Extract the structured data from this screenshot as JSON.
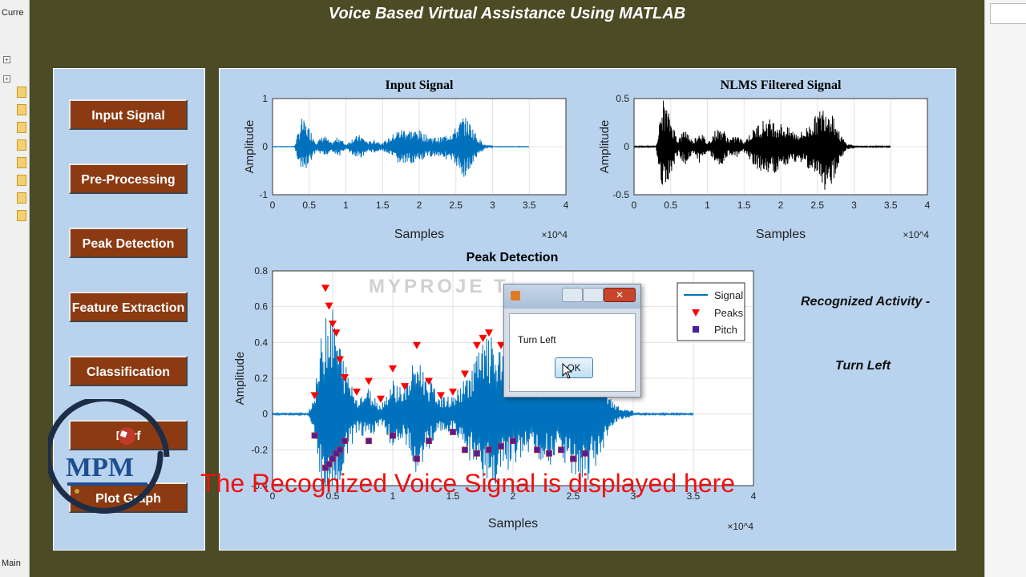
{
  "matlab_ide": {
    "left_labels": [
      "Curre",
      "Main"
    ]
  },
  "app": {
    "title": "Voice Based Virtual Assistance Using MATLAB"
  },
  "buttons": [
    {
      "label": "Input Signal"
    },
    {
      "label": "Pre-Processing"
    },
    {
      "label": "Peak Detection"
    },
    {
      "label": "Feature Extraction"
    },
    {
      "label": "Classification"
    },
    {
      "label": "Perf"
    },
    {
      "label": "Plot Graph"
    }
  ],
  "recognized": {
    "heading": "Recognized Activity -",
    "value": "Turn Left"
  },
  "dialog": {
    "message": "Turn Left",
    "ok_label": "OK"
  },
  "overlay": {
    "caption": "The Recognized Voice Signal is displayed here",
    "watermark": "MYPROJE      T",
    "logo_text": "MPM"
  },
  "colors": {
    "figure_bg": "#4b4b25",
    "panel_bg": "#b9d3ee",
    "button_bg": "#8b3a12",
    "signal": "#0072bd",
    "peaks": "#ff0000",
    "pitch": "#4a1f9e",
    "caption": "#ee1111"
  },
  "chart_data": [
    {
      "type": "line",
      "title": "Input Signal",
      "xlabel": "Samples",
      "ylabel": "Amplitude",
      "xlim": [
        0,
        40000
      ],
      "ylim": [
        -1,
        1
      ],
      "x_ticks": [
        "0",
        "0.5",
        "1",
        "1.5",
        "2",
        "2.5",
        "3",
        "3.5",
        "4"
      ],
      "y_ticks": [
        "-1",
        "0",
        "1"
      ],
      "x_exponent": "×10^4",
      "grid": true,
      "series": [
        {
          "color": "#0072bd",
          "envelope": [
            [
              3000,
              0.02
            ],
            [
              4000,
              0.6
            ],
            [
              5000,
              0.4
            ],
            [
              6000,
              0.1
            ],
            [
              7000,
              0.25
            ],
            [
              8000,
              0.08
            ],
            [
              9000,
              0.22
            ],
            [
              10000,
              0.05
            ],
            [
              11000,
              0.2
            ],
            [
              12000,
              0.25
            ],
            [
              13000,
              0.1
            ],
            [
              14000,
              0.15
            ],
            [
              15000,
              0.08
            ],
            [
              16000,
              0.2
            ],
            [
              17000,
              0.35
            ],
            [
              18000,
              0.4
            ],
            [
              19000,
              0.35
            ],
            [
              20000,
              0.35
            ],
            [
              21000,
              0.25
            ],
            [
              22000,
              0.2
            ],
            [
              23000,
              0.2
            ],
            [
              24000,
              0.3
            ],
            [
              25000,
              0.4
            ],
            [
              26000,
              0.65
            ],
            [
              27000,
              0.5
            ],
            [
              28000,
              0.2
            ],
            [
              29000,
              0.04
            ],
            [
              30000,
              0.02
            ]
          ]
        }
      ]
    },
    {
      "type": "line",
      "title": "NLMS Filtered Signal",
      "xlabel": "Samples",
      "ylabel": "Amplitude",
      "xlim": [
        0,
        40000
      ],
      "ylim": [
        -0.5,
        0.5
      ],
      "x_ticks": [
        "0",
        "0.5",
        "1",
        "1.5",
        "2",
        "2.5",
        "3",
        "3.5",
        "4"
      ],
      "y_ticks": [
        "-0.5",
        "0",
        "0.5"
      ],
      "x_exponent": "×10^4",
      "grid": true,
      "series": [
        {
          "color": "#000000",
          "envelope": [
            [
              3000,
              0.02
            ],
            [
              4000,
              0.5
            ],
            [
              5000,
              0.3
            ],
            [
              6000,
              0.08
            ],
            [
              7000,
              0.2
            ],
            [
              8000,
              0.06
            ],
            [
              9000,
              0.18
            ],
            [
              10000,
              0.04
            ],
            [
              11000,
              0.17
            ],
            [
              12000,
              0.2
            ],
            [
              13000,
              0.08
            ],
            [
              14000,
              0.12
            ],
            [
              15000,
              0.06
            ],
            [
              16000,
              0.16
            ],
            [
              17000,
              0.25
            ],
            [
              18000,
              0.3
            ],
            [
              19000,
              0.28
            ],
            [
              20000,
              0.25
            ],
            [
              21000,
              0.2
            ],
            [
              22000,
              0.16
            ],
            [
              23000,
              0.16
            ],
            [
              24000,
              0.25
            ],
            [
              25000,
              0.35
            ],
            [
              26000,
              0.45
            ],
            [
              27000,
              0.4
            ],
            [
              28000,
              0.15
            ],
            [
              29000,
              0.03
            ],
            [
              30000,
              0.02
            ]
          ]
        }
      ]
    },
    {
      "type": "line",
      "title": "Peak Detection",
      "xlabel": "Samples",
      "ylabel": "Amplitude",
      "xlim": [
        0,
        40000
      ],
      "ylim": [
        -0.4,
        0.8
      ],
      "x_ticks": [
        "0",
        "0.5",
        "1",
        "1.5",
        "2",
        "2.5",
        "3",
        "3.5",
        "4"
      ],
      "y_ticks": [
        "-0.4",
        "-0.2",
        "0",
        "0.2",
        "0.4",
        "0.6",
        "0.8"
      ],
      "x_exponent": "×10^4",
      "grid": true,
      "legend": {
        "position": "top-right",
        "entries": [
          "Signal",
          "Peaks",
          "Pitch"
        ]
      },
      "series": [
        {
          "name": "Signal",
          "color": "#0072bd",
          "envelope": [
            [
              3000,
              0.02
            ],
            [
              3500,
              0.12
            ],
            [
              4500,
              0.7
            ],
            [
              5000,
              0.6
            ],
            [
              6000,
              0.3
            ],
            [
              7000,
              0.1
            ],
            [
              8000,
              0.15
            ],
            [
              9000,
              0.05
            ],
            [
              10000,
              0.2
            ],
            [
              11000,
              0.15
            ],
            [
              12000,
              0.35
            ],
            [
              13000,
              0.2
            ],
            [
              14000,
              0.1
            ],
            [
              15000,
              0.1
            ],
            [
              16000,
              0.2
            ],
            [
              17000,
              0.35
            ],
            [
              18000,
              0.45
            ],
            [
              19000,
              0.35
            ],
            [
              20000,
              0.3
            ],
            [
              21000,
              0.25
            ],
            [
              22000,
              0.25
            ],
            [
              23000,
              0.3
            ],
            [
              24000,
              0.25
            ],
            [
              25000,
              0.35
            ],
            [
              26000,
              0.4
            ],
            [
              27000,
              0.3
            ],
            [
              28000,
              0.1
            ],
            [
              29000,
              0.03
            ],
            [
              30000,
              0.02
            ]
          ]
        },
        {
          "name": "Peaks",
          "color": "#ff0000",
          "points": [
            [
              3500,
              0.1
            ],
            [
              4400,
              0.7
            ],
            [
              4700,
              0.6
            ],
            [
              5000,
              0.5
            ],
            [
              5300,
              0.45
            ],
            [
              5600,
              0.3
            ],
            [
              6000,
              0.2
            ],
            [
              7000,
              0.12
            ],
            [
              8000,
              0.18
            ],
            [
              9000,
              0.08
            ],
            [
              10000,
              0.25
            ],
            [
              11000,
              0.15
            ],
            [
              12000,
              0.38
            ],
            [
              13000,
              0.18
            ],
            [
              14000,
              0.1
            ],
            [
              15000,
              0.12
            ],
            [
              16000,
              0.22
            ],
            [
              17000,
              0.38
            ],
            [
              17500,
              0.42
            ],
            [
              18000,
              0.45
            ],
            [
              19000,
              0.38
            ],
            [
              20000,
              0.3
            ],
            [
              21000,
              0.28
            ],
            [
              22000,
              0.25
            ],
            [
              23000,
              0.3
            ],
            [
              24000,
              0.22
            ],
            [
              25000,
              0.32
            ],
            [
              26000,
              0.38
            ],
            [
              27000,
              0.28
            ]
          ]
        },
        {
          "name": "Pitch",
          "color": "#4a1f9e",
          "points": [
            [
              3500,
              -0.12
            ],
            [
              4400,
              -0.3
            ],
            [
              4700,
              -0.28
            ],
            [
              5000,
              -0.25
            ],
            [
              5300,
              -0.22
            ],
            [
              5600,
              -0.2
            ],
            [
              6000,
              -0.15
            ],
            [
              8000,
              -0.15
            ],
            [
              10000,
              -0.12
            ],
            [
              12000,
              -0.25
            ],
            [
              13000,
              -0.15
            ],
            [
              15000,
              -0.1
            ],
            [
              16000,
              -0.2
            ],
            [
              17000,
              -0.22
            ],
            [
              18000,
              -0.2
            ],
            [
              19000,
              -0.18
            ],
            [
              20000,
              -0.15
            ],
            [
              22000,
              -0.2
            ],
            [
              23000,
              -0.22
            ],
            [
              24000,
              -0.2
            ],
            [
              25000,
              -0.25
            ],
            [
              26000,
              -0.22
            ]
          ]
        }
      ]
    }
  ]
}
